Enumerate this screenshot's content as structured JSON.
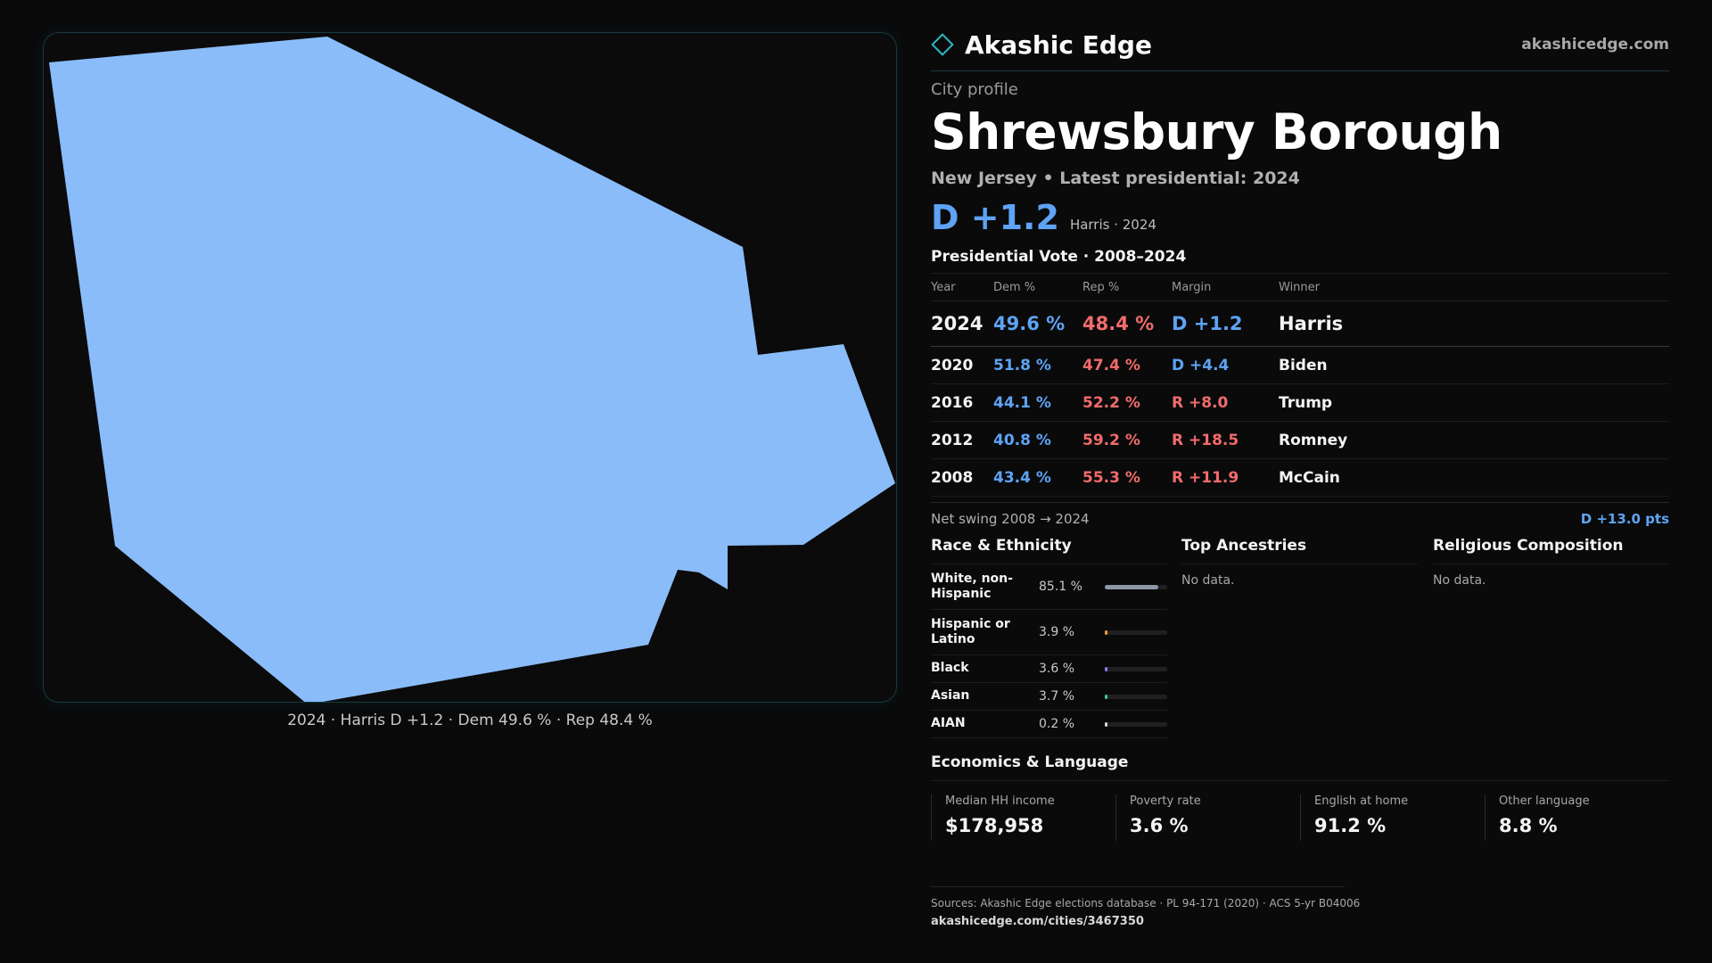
{
  "brand": {
    "name": "Akashic Edge",
    "site": "akashicedge.com",
    "icon": "diamond-icon"
  },
  "profile": {
    "eyebrow": "City profile",
    "city": "Shrewsbury Borough",
    "subline": "New Jersey • Latest presidential: 2024",
    "margin": "D +1.2",
    "margin_note": "Harris · 2024"
  },
  "map": {
    "caption": "2024 · Harris D +1.2 · Dem 49.6 % · Rep 48.4 %",
    "fill_color": "#8abcf9",
    "border_color": "#163a3e"
  },
  "vote": {
    "title": "Presidential Vote · 2008–2024",
    "headers": {
      "year": "Year",
      "dem": "Dem %",
      "rep": "Rep %",
      "margin": "Margin",
      "winner": "Winner"
    },
    "current": {
      "year": "2024",
      "dem": "49.6 %",
      "rep": "48.4 %",
      "margin": "D +1.2",
      "winner": "Harris"
    },
    "rows": [
      {
        "year": "2020",
        "dem": "51.8 %",
        "rep": "47.4 %",
        "margin": "D +4.4",
        "winner": "Biden"
      },
      {
        "year": "2016",
        "dem": "44.1 %",
        "rep": "52.2 %",
        "margin": "R +8.0",
        "winner": "Trump"
      },
      {
        "year": "2012",
        "dem": "40.8 %",
        "rep": "59.2 %",
        "margin": "R +18.5",
        "winner": "Romney"
      },
      {
        "year": "2008",
        "dem": "43.4 %",
        "rep": "55.3 %",
        "margin": "R +11.9",
        "winner": "McCain"
      }
    ],
    "swing_label": "Net swing 2008 → 2024",
    "swing_value": "D +13.0 pts",
    "colors": {
      "dem": "#5ea3f4",
      "rep": "#f26b6b"
    }
  },
  "race": {
    "title": "Race & Ethnicity",
    "rows": [
      {
        "label": "White, non-Hispanic",
        "pct": "85.1 %",
        "value": 0.851,
        "color": "#8d97a8"
      },
      {
        "label": "Hispanic or Latino",
        "pct": "3.9 %",
        "value": 0.039,
        "color": "#e8a23a"
      },
      {
        "label": "Black",
        "pct": "3.6 %",
        "value": 0.036,
        "color": "#8a7cf0"
      },
      {
        "label": "Asian",
        "pct": "3.7 %",
        "value": 0.037,
        "color": "#3fc79a"
      },
      {
        "label": "AIAN",
        "pct": "0.2 %",
        "value": 0.002,
        "color": "#d4d4d4"
      }
    ]
  },
  "ancestries": {
    "title": "Top Ancestries",
    "empty": "No data."
  },
  "religion": {
    "title": "Religious Composition",
    "empty": "No data."
  },
  "economics": {
    "title": "Economics & Language",
    "stats": [
      {
        "label": "Median HH income",
        "value": "$178,958"
      },
      {
        "label": "Poverty rate",
        "value": "3.6 %"
      },
      {
        "label": "English at home",
        "value": "91.2 %"
      },
      {
        "label": "Other language",
        "value": "8.8 %"
      }
    ]
  },
  "footer": {
    "sources": "Sources: Akashic Edge elections database · PL 94-171 (2020) · ACS 5-yr B04006",
    "url": "akashicedge.com/cities/3467350"
  }
}
